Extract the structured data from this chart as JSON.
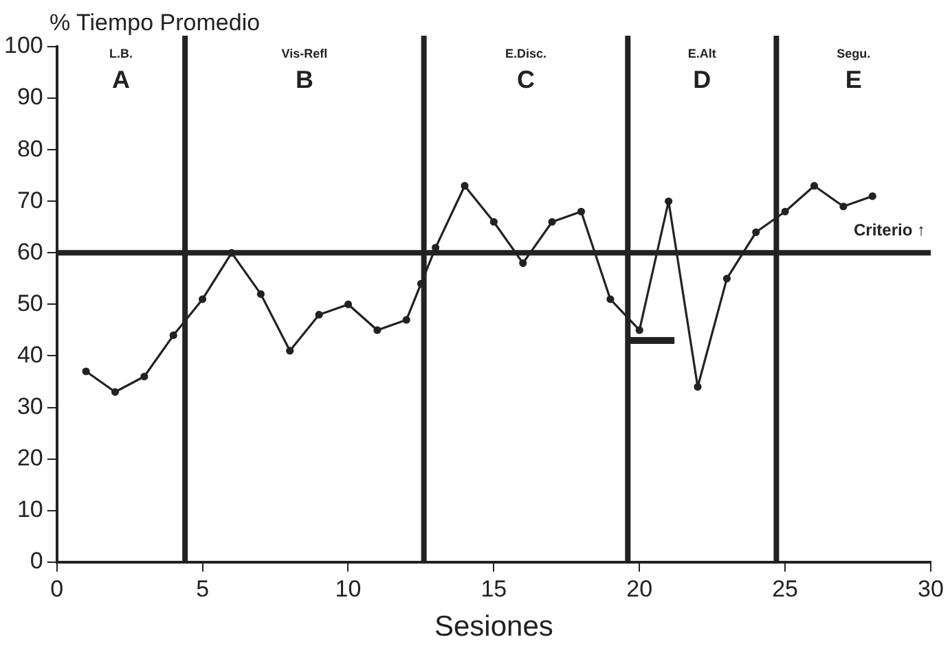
{
  "chart_data": {
    "type": "line",
    "xlabel": "Sesiones",
    "ylabel": "% Tiempo Promedio",
    "xlim": [
      0,
      30
    ],
    "xticks": [
      0,
      5,
      10,
      15,
      20,
      25,
      30
    ],
    "ylim": [
      0,
      100
    ],
    "yticks": [
      0,
      10,
      20,
      30,
      40,
      50,
      60,
      70,
      80,
      90,
      100
    ],
    "grid": false,
    "legend": false,
    "marker": "circle",
    "line_style": "solid",
    "series": [
      {
        "color": "#222222",
        "x": [
          1,
          2,
          3,
          4,
          5,
          6,
          7,
          8,
          9,
          10,
          11,
          12,
          12.5,
          13,
          14,
          15,
          16,
          17,
          18,
          19,
          20,
          21,
          22,
          23,
          24,
          25,
          26,
          27,
          28
        ],
        "values": [
          37,
          33,
          36,
          44,
          51,
          60,
          52,
          41,
          48,
          50,
          45,
          47,
          54,
          61,
          73,
          66,
          58,
          66,
          68,
          51,
          45,
          70,
          34,
          55,
          64,
          68,
          73,
          69,
          71
        ]
      },
      {
        "type": "line",
        "color": "#222222",
        "marker": "none",
        "x": [
          19.6,
          21.2
        ],
        "values": [
          43,
          43
        ]
      }
    ],
    "ref_lines": [
      {
        "axis": "y",
        "value": 60,
        "label": "Criterio ↑"
      },
      {
        "axis": "x",
        "value": 4.4,
        "label": null
      },
      {
        "axis": "x",
        "value": 12.6,
        "label": null
      },
      {
        "axis": "x",
        "value": 19.6,
        "label": null
      },
      {
        "axis": "x",
        "value": 24.7,
        "label": null
      }
    ],
    "annotations": [
      "L.B.",
      "A",
      "Vis-Refl",
      "B",
      "E.Disc.",
      "C",
      "E.Alt",
      "D",
      "Segu.",
      "E"
    ]
  }
}
